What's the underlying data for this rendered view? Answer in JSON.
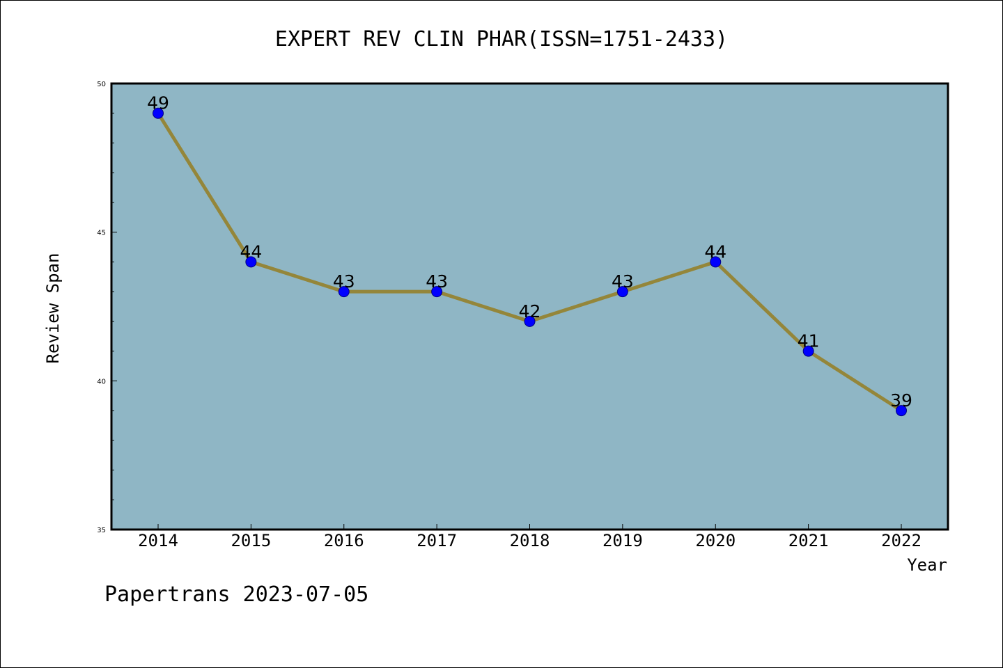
{
  "chart_data": {
    "type": "line",
    "title": "EXPERT REV CLIN PHAR(ISSN=1751-2433)",
    "xlabel": "Year",
    "ylabel": "Review Span",
    "categories": [
      "2014",
      "2015",
      "2016",
      "2017",
      "2018",
      "2019",
      "2020",
      "2021",
      "2022"
    ],
    "series": [
      {
        "values": [
          49,
          44,
          43,
          43,
          42,
          43,
          44,
          41,
          39
        ]
      }
    ],
    "ylim": [
      35,
      50
    ],
    "yticks": [
      "35",
      "40",
      "45",
      "50"
    ],
    "grid": false,
    "data_labels": true
  },
  "footer": {
    "text": "Papertrans 2023-07-05"
  },
  "colors": {
    "plot_background": "#8fb6c5",
    "line": "#94863a",
    "marker_fill": "#0000ff",
    "marker_stroke": "#000080",
    "axes": "#000000"
  }
}
